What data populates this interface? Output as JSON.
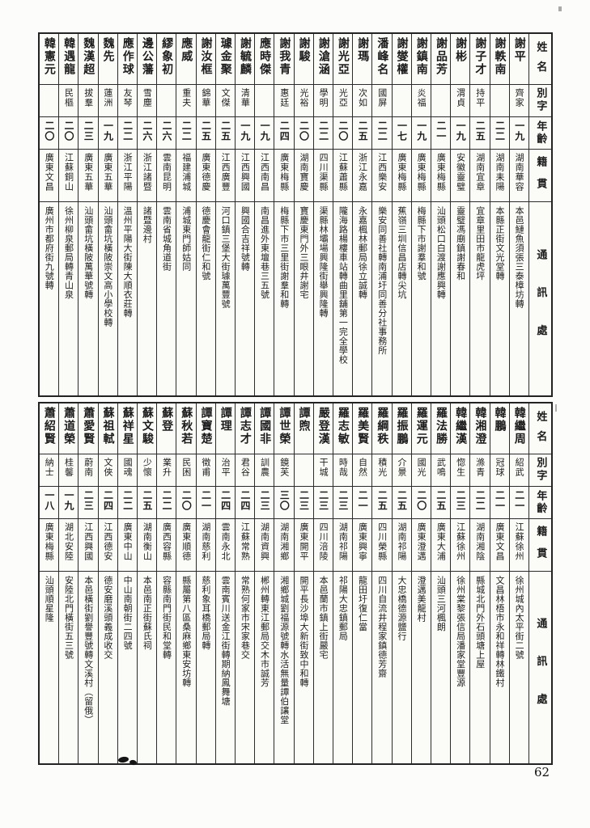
{
  "page": {
    "number": "62"
  },
  "headers": [
    "姓名",
    "別字",
    "年齡",
    "籍貫",
    "通訊處"
  ],
  "tables": [
    {
      "entries": [
        {
          "name": "謝平",
          "alias": "齊家",
          "age": "一九",
          "origin": "湖南華容",
          "address": "本邑鰱魚須張三泰樟坊轉"
        },
        {
          "name": "謝軼南",
          "alias": "",
          "age": "二二",
          "origin": "湖南耒陽",
          "address": "本縣正街文光堂轉"
        },
        {
          "name": "謝子才",
          "alias": "持平",
          "age": "二五",
          "origin": "湖南宜章",
          "address": "宜章里田市龍虎坪"
        },
        {
          "name": "謝彬",
          "alias": "渭貞",
          "age": "一九",
          "origin": "安徽靈璧",
          "address": "靈璧馮廟鎮謝春和"
        },
        {
          "name": "謝品芳",
          "alias": "",
          "age": "二一",
          "origin": "廣東梅縣",
          "address": "汕頭松口白渡謝應興轉"
        },
        {
          "name": "謝鎮南",
          "alias": "炎福",
          "age": "一九",
          "origin": "廣東梅縣",
          "address": "梅縣下市謝羣和號"
        },
        {
          "name": "謝燮權",
          "alias": "",
          "age": "一七",
          "origin": "廣東梅縣",
          "address": "蕉嶺三圳信昌店轉尖坑"
        },
        {
          "name": "潘峰名",
          "alias": "國屏",
          "age": "二二",
          "origin": "江西樂安",
          "address": "樂安同善社轉南浦圩同善分社事務所"
        },
        {
          "name": "謝瑪",
          "alias": "次如",
          "age": "二五",
          "origin": "浙江永嘉",
          "address": "永嘉楓林郵局徐立誠轉"
        },
        {
          "name": "謝光亞",
          "alias": "光亞",
          "age": "二〇",
          "origin": "江蘇蕭縣",
          "address": "隴海路楊樓車站轉曲里舖第一完全學校"
        },
        {
          "name": "謝滄涵",
          "alias": "學明",
          "age": "二二",
          "origin": "四川渠縣",
          "address": "渠縣林壩場興隆街舉興隆轉"
        },
        {
          "name": "謝駿",
          "alias": "光裕",
          "age": "二〇",
          "origin": "湖南寶慶",
          "address": "寶慶東門外三眼井謝宅"
        },
        {
          "name": "謝我青",
          "alias": "惠廷",
          "age": "二四",
          "origin": "廣東梅縣",
          "address": "梅縣下市三里街謝羣和轉"
        },
        {
          "name": "應時傑",
          "alias": "",
          "age": "一九",
          "origin": "江西南昌",
          "address": "南昌進外東壇巷三五號"
        },
        {
          "name": "謝毓麟",
          "alias": "清華",
          "age": "一九",
          "origin": "江西興國",
          "address": "興國合吉祥號轉"
        },
        {
          "name": "璩金聚",
          "alias": "文傑",
          "age": "二五",
          "origin": "江西廣豐",
          "address": "河口鎮三堡大街璩萬豐號"
        },
        {
          "name": "謝汝框",
          "alias": "錦華",
          "age": "二五",
          "origin": "廣東德慶",
          "address": "德慶會龍街仁和號"
        },
        {
          "name": "應威",
          "alias": "重夫",
          "age": "二二",
          "origin": "福建浦城",
          "address": "浦城東門師姑同"
        },
        {
          "name": "繆象初",
          "alias": "",
          "age": "二六",
          "origin": "雲南昆明",
          "address": "雲南省城角道街"
        },
        {
          "name": "邊公藩",
          "alias": "雪塵",
          "age": "二六",
          "origin": "浙江諸暨",
          "address": "諸暨邊村"
        },
        {
          "name": "應作球",
          "alias": "友琴",
          "age": "二二",
          "origin": "浙江平陽",
          "address": "溫州平陽大街陳大順衣莊轉"
        },
        {
          "name": "魏先",
          "alias": "蓮洲",
          "age": "一九",
          "origin": "廣東五華",
          "address": "汕頭畲坑橫陂崇文高小學校轉"
        },
        {
          "name": "魏漢超",
          "alias": "拔羣",
          "age": "二三",
          "origin": "廣東五華",
          "address": "汕頭畲坑橫陂萬華號轉"
        },
        {
          "name": "韓遇龍",
          "alias": "民樞",
          "age": "二〇",
          "origin": "江蘇銅山",
          "address": "徐州柳泉郵局轉青山泉"
        },
        {
          "name": "韓憲元",
          "alias": "",
          "age": "二〇",
          "origin": "廣東文昌",
          "address": "廣州市都府街九號轉"
        }
      ]
    },
    {
      "entries": [
        {
          "name": "韓繼周",
          "alias": "紹武",
          "age": "二一",
          "origin": "江蘇徐州",
          "address": "徐州城內太平街二號"
        },
        {
          "name": "韓鵬",
          "alias": "冠球",
          "age": "二一",
          "origin": "廣東文昌",
          "address": "文昌林梧市永和祥轉林鐵村"
        },
        {
          "name": "韓湘澄",
          "alias": "滌青",
          "age": "二二",
          "origin": "湖南湘陰",
          "address": "縣城北門外石頭塘上屋"
        },
        {
          "name": "韓繼漢",
          "alias": "惚生",
          "age": "二三",
          "origin": "江蘇徐州",
          "address": "徐州棠黎張信局潘家堂豐源"
        },
        {
          "name": "羅法勝",
          "alias": "武鳴",
          "age": "二五",
          "origin": "廣東大浦",
          "address": "汕頭三河楓朗"
        },
        {
          "name": "羅運元",
          "alias": "國光",
          "age": "二〇",
          "origin": "廣東澄邁",
          "address": "澄邁美龍村"
        },
        {
          "name": "羅振鵬",
          "alias": "介景",
          "age": "二五",
          "origin": "湖南祁陽",
          "address": "大忠橋德源鹽行"
        },
        {
          "name": "羅綱秩",
          "alias": "積光",
          "age": "二五",
          "origin": "四川榮縣",
          "address": "四川自流井程家鎮德芳齋"
        },
        {
          "name": "羅美賢",
          "alias": "自然",
          "age": "二一",
          "origin": "廣東興寧",
          "address": "龍田圩復仁當"
        },
        {
          "name": "羅志敏",
          "alias": "時哉",
          "age": "二三",
          "origin": "湖南祁陽",
          "address": "祁陽大忠鎮郵局"
        },
        {
          "name": "嚴登漢",
          "alias": "干城",
          "age": "二三",
          "origin": "四川涪陵",
          "address": "本邑蘭市鎮上街嚴宅"
        },
        {
          "name": "譚煦",
          "alias": "",
          "age": "二三",
          "origin": "廣東開平",
          "address": "開平長沙埠大新街致中和轉"
        },
        {
          "name": "譚世榮",
          "alias": "鏡芙",
          "age": "三〇",
          "origin": "湖南湘鄉",
          "address": "湘鄉城劉福源號轉水活無量譚伯讓堂"
        },
        {
          "name": "譚國非",
          "alias": "訓農",
          "age": "二三",
          "origin": "湖南資興",
          "address": "郴州轉東江郵局交木市誠芳"
        },
        {
          "name": "譚志才",
          "alias": "君谷",
          "age": "二四",
          "origin": "江蘇常熟",
          "address": "常熟何家市宋家巷交"
        },
        {
          "name": "譚理",
          "alias": "治平",
          "age": "二四",
          "origin": "雲南永北",
          "address": "雲南賓川送金江街轉期納鳳舞塘"
        },
        {
          "name": "譚寶楚",
          "alias": "徵甫",
          "age": "二一",
          "origin": "湖南慈利",
          "address": "慈利象耳橋郵局轉"
        },
        {
          "name": "蘇秋若",
          "alias": "民困",
          "age": "二〇",
          "origin": "廣東順德",
          "address": "縣屬第八區桑麻鄉東安坊轉"
        },
        {
          "name": "蘇登",
          "alias": "業升",
          "age": "二二",
          "origin": "廣西容縣",
          "address": "容縣南門街民和堂轉"
        },
        {
          "name": "蘇文駿",
          "alias": "少懷",
          "age": "二五",
          "origin": "湖南衡山",
          "address": "本邑南正街蘇氏祠"
        },
        {
          "name": "蘇祥星",
          "alias": "國魂",
          "age": "二二",
          "origin": "廣東中山",
          "address": "中山南朝街二四號"
        },
        {
          "name": "蘇祖軾",
          "alias": "文俠",
          "age": "二四",
          "origin": "江西德安",
          "address": "德安磨溪頭義成收交"
        },
        {
          "name": "蕭愛賢",
          "alias": "蔚南",
          "age": "二三",
          "origin": "江西興國",
          "address": "本邑橫街劉譽豐號轉文溪村（留俄）"
        },
        {
          "name": "蕭道榮",
          "alias": "桂馨",
          "age": "一九",
          "origin": "湖北安陸",
          "address": "安陸北門橫街五三號"
        },
        {
          "name": "蕭紹賢",
          "alias": "納士",
          "age": "一八",
          "origin": "廣東梅縣",
          "address": "汕頭順星隆"
        }
      ]
    }
  ]
}
